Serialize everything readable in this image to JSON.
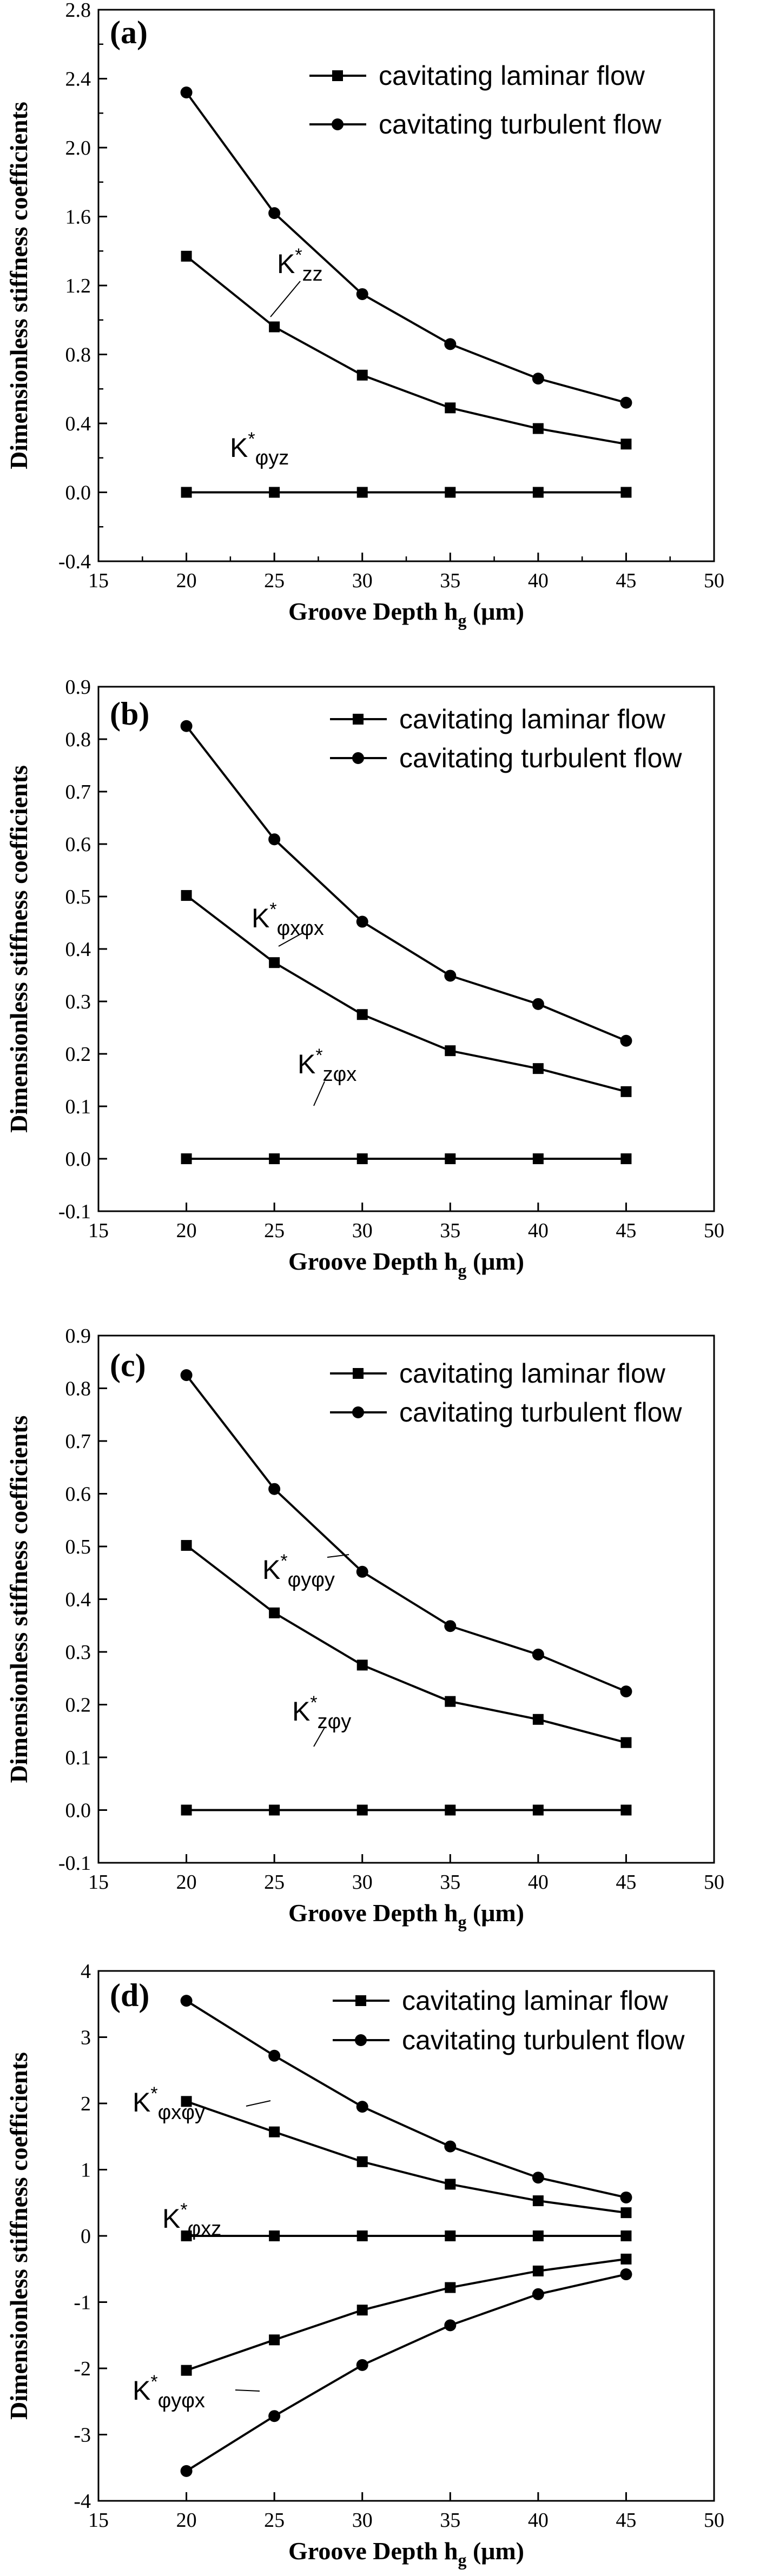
{
  "figure": {
    "panel_count": 4
  },
  "chart_data": [
    {
      "type": "line",
      "panel_label": "(a)",
      "xlabel": "Groove Depth h",
      "xlabel_sub": "g",
      "xlabel_unit": " (μm)",
      "ylabel": "Dimensionless stiffness coefficients",
      "xlim": [
        15,
        50
      ],
      "ylim": [
        -0.4,
        2.8
      ],
      "xticks": [
        15,
        20,
        25,
        30,
        35,
        40,
        45,
        50
      ],
      "yticks": [
        -0.4,
        0.0,
        0.4,
        0.8,
        1.2,
        1.6,
        2.0,
        2.4,
        2.8
      ],
      "ytick_labels": [
        "-0.4",
        "0.0",
        "0.4",
        "0.8",
        "1.2",
        "1.6",
        "2.0",
        "2.4",
        "2.8"
      ],
      "grid": false,
      "legend_position": "top-right",
      "x": [
        20,
        25,
        30,
        35,
        40,
        45
      ],
      "series": [
        {
          "name": "cavitating laminar flow",
          "marker": "square",
          "values": [
            1.37,
            0.96,
            0.68,
            0.49,
            0.37,
            0.28
          ]
        },
        {
          "name": "cavitating turbulent flow",
          "marker": "circle",
          "values": [
            2.32,
            1.62,
            1.15,
            0.86,
            0.66,
            0.52
          ]
        },
        {
          "marker": "square",
          "values": [
            0,
            0,
            0,
            0,
            0,
            0
          ]
        }
      ],
      "annotations": [
        {
          "main": "K",
          "sup": "*",
          "sub": "zz"
        },
        {
          "main": "K",
          "sup": "*",
          "sub": "φyz"
        }
      ]
    },
    {
      "type": "line",
      "panel_label": "(b)",
      "xlabel": "Groove Depth h",
      "xlabel_sub": "g",
      "xlabel_unit": " (μm)",
      "ylabel": "Dimensionless stiffness coefficients",
      "xlim": [
        15,
        50
      ],
      "ylim": [
        -0.1,
        0.9
      ],
      "xticks": [
        15,
        20,
        25,
        30,
        35,
        40,
        45,
        50
      ],
      "yticks": [
        -0.1,
        0.0,
        0.1,
        0.2,
        0.3,
        0.4,
        0.5,
        0.6,
        0.7,
        0.8,
        0.9
      ],
      "ytick_labels": [
        "-0.1",
        "0.0",
        "0.1",
        "0.2",
        "0.3",
        "0.4",
        "0.5",
        "0.6",
        "0.7",
        "0.8",
        "0.9"
      ],
      "grid": false,
      "legend_position": "top-right",
      "x": [
        20,
        25,
        30,
        35,
        40,
        45
      ],
      "series": [
        {
          "name": "cavitating laminar flow",
          "marker": "square",
          "values": [
            0.502,
            0.374,
            0.275,
            0.206,
            0.172,
            0.128
          ]
        },
        {
          "name": "cavitating turbulent flow",
          "marker": "circle",
          "values": [
            0.825,
            0.609,
            0.452,
            0.349,
            0.295,
            0.225
          ]
        },
        {
          "marker": "square",
          "values": [
            0,
            0,
            0,
            0,
            0,
            0
          ]
        }
      ],
      "annotations": [
        {
          "main": "K",
          "sup": "*",
          "sub": "φxφx"
        },
        {
          "main": "K",
          "sup": "*",
          "sub": "zφx"
        }
      ]
    },
    {
      "type": "line",
      "panel_label": "(c)",
      "xlabel": "Groove Depth h",
      "xlabel_sub": "g",
      "xlabel_unit": " (μm)",
      "ylabel": "Dimensionless stiffness coefficients",
      "xlim": [
        15,
        50
      ],
      "ylim": [
        -0.1,
        0.9
      ],
      "xticks": [
        15,
        20,
        25,
        30,
        35,
        40,
        45,
        50
      ],
      "yticks": [
        -0.1,
        0.0,
        0.1,
        0.2,
        0.3,
        0.4,
        0.5,
        0.6,
        0.7,
        0.8,
        0.9
      ],
      "ytick_labels": [
        "-0.1",
        "0.0",
        "0.1",
        "0.2",
        "0.3",
        "0.4",
        "0.5",
        "0.6",
        "0.7",
        "0.8",
        "0.9"
      ],
      "grid": false,
      "legend_position": "top-right",
      "x": [
        20,
        25,
        30,
        35,
        40,
        45
      ],
      "series": [
        {
          "name": "cavitating laminar flow",
          "marker": "square",
          "values": [
            0.502,
            0.374,
            0.275,
            0.206,
            0.172,
            0.128
          ]
        },
        {
          "name": "cavitating turbulent flow",
          "marker": "circle",
          "values": [
            0.825,
            0.609,
            0.452,
            0.349,
            0.295,
            0.225
          ]
        },
        {
          "marker": "square",
          "values": [
            0,
            0,
            0,
            0,
            0,
            0
          ]
        }
      ],
      "annotations": [
        {
          "main": "K",
          "sup": "*",
          "sub": "φyφy"
        },
        {
          "main": "K",
          "sup": "*",
          "sub": "zφy"
        }
      ]
    },
    {
      "type": "line",
      "panel_label": "(d)",
      "xlabel": "Groove Depth h",
      "xlabel_sub": "g",
      "xlabel_unit": " (μm)",
      "ylabel": "Dimensionless stiffness coefficients",
      "xlim": [
        15,
        50
      ],
      "ylim": [
        -4,
        4
      ],
      "xticks": [
        15,
        20,
        25,
        30,
        35,
        40,
        45,
        50
      ],
      "yticks": [
        -4,
        -3,
        -2,
        -1,
        0,
        1,
        2,
        3,
        4
      ],
      "ytick_labels": [
        "-4",
        "-3",
        "-2",
        "-1",
        "0",
        "1",
        "2",
        "3",
        "4"
      ],
      "grid": false,
      "legend_position": "top-right",
      "x": [
        20,
        25,
        30,
        35,
        40,
        45
      ],
      "series": [
        {
          "name": "cavitating laminar flow",
          "marker": "square",
          "values": [
            2.03,
            1.57,
            1.12,
            0.78,
            0.53,
            0.35
          ]
        },
        {
          "name": "cavitating turbulent flow",
          "marker": "circle",
          "values": [
            3.55,
            2.72,
            1.95,
            1.35,
            0.88,
            0.58
          ]
        },
        {
          "marker": "square",
          "values": [
            0,
            0,
            0,
            0,
            0,
            0
          ]
        },
        {
          "marker": "square",
          "values": [
            -2.03,
            -1.57,
            -1.12,
            -0.78,
            -0.53,
            -0.35
          ]
        },
        {
          "marker": "circle",
          "values": [
            -3.55,
            -2.72,
            -1.95,
            -1.35,
            -0.88,
            -0.58
          ]
        }
      ],
      "annotations": [
        {
          "main": "K",
          "sup": "*",
          "sub": "φxφy"
        },
        {
          "main": "K",
          "sup": "*",
          "sub": "φxz"
        },
        {
          "main": "K",
          "sup": "*",
          "sub": "φyφx"
        }
      ]
    }
  ]
}
